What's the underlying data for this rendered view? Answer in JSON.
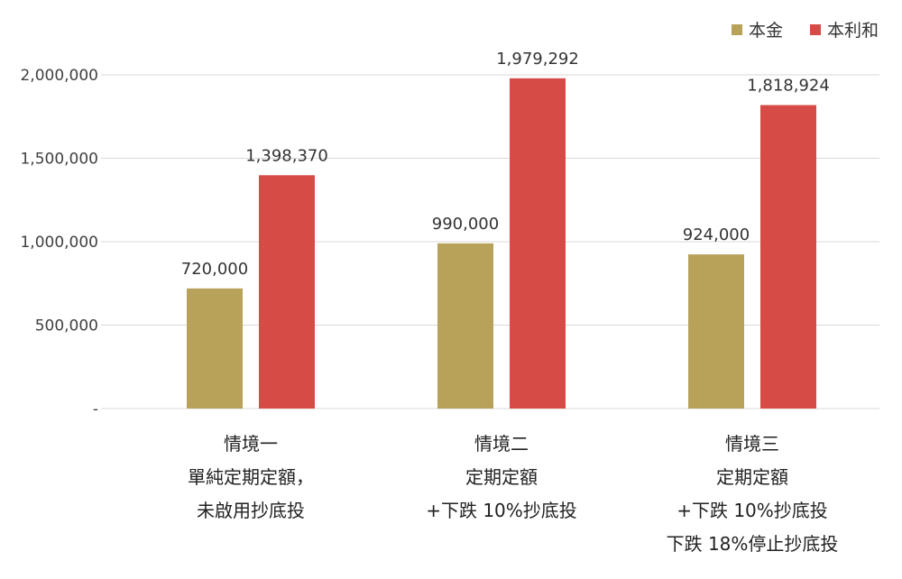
{
  "chart_data": {
    "type": "bar",
    "categories": [
      [
        "情境一",
        "單純定期定額，",
        "未啟用抄底投"
      ],
      [
        "情境二",
        "定期定額",
        "+下跌 10%抄底投"
      ],
      [
        "情境三",
        "定期定額",
        "+下跌 10%抄底投",
        "下跌 18%停止抄底投"
      ]
    ],
    "series": [
      {
        "name": "本金",
        "color": "#B8A25A",
        "values": [
          720000,
          990000,
          924000
        ],
        "labels": [
          "720,000",
          "990,000",
          "924,000"
        ]
      },
      {
        "name": "本利和",
        "color": "#D64B45",
        "values": [
          1398370,
          1979292,
          1818924
        ],
        "labels": [
          "1,398,370",
          "1,979,292",
          "1,818,924"
        ]
      }
    ],
    "ylim": [
      0,
      2000000
    ],
    "yticks": [
      0,
      500000,
      1000000,
      1500000,
      2000000
    ],
    "ytick_labels": [
      "-",
      "500,000",
      "1,000,000",
      "1,500,000",
      "2,000,000"
    ],
    "grid": true,
    "legend_position": "top-right",
    "gridline_color": "#D9D9D9"
  }
}
